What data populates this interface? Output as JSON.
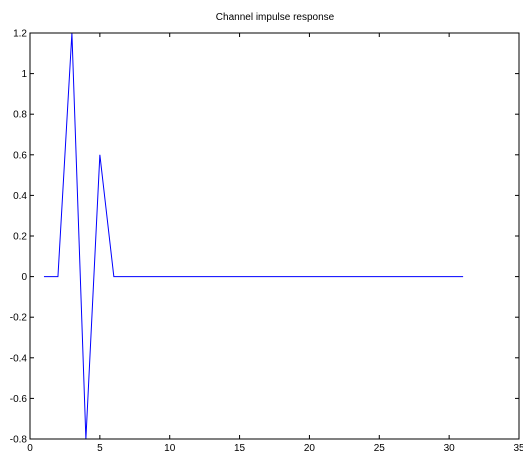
{
  "chart_data": {
    "type": "line",
    "title": "Channel impulse response",
    "xlabel": "",
    "ylabel": "",
    "xlim": [
      0,
      35
    ],
    "ylim": [
      -0.8,
      1.2
    ],
    "xticks": [
      0,
      5,
      10,
      15,
      20,
      25,
      30,
      35
    ],
    "yticks": [
      -0.8,
      -0.6,
      -0.4,
      -0.2,
      0,
      0.2,
      0.4,
      0.6,
      0.8,
      1,
      1.2
    ],
    "xtick_labels": [
      "0",
      "5",
      "10",
      "15",
      "20",
      "25",
      "30",
      "35"
    ],
    "ytick_labels": [
      "-0.8",
      "-0.6",
      "-0.4",
      "-0.2",
      "0",
      "0.2",
      "0.4",
      "0.6",
      "0.8",
      "1",
      "1.2"
    ],
    "grid": false,
    "series": [
      {
        "color": "#0000ff",
        "x": [
          1,
          2,
          3,
          4,
          5,
          6,
          7,
          8,
          9,
          10,
          11,
          12,
          13,
          14,
          15,
          16,
          17,
          18,
          19,
          20,
          21,
          22,
          23,
          24,
          25,
          26,
          27,
          28,
          29,
          30,
          31
        ],
        "y": [
          0,
          0,
          1.2,
          -0.8,
          0.6,
          0,
          0,
          0,
          0,
          0,
          0,
          0,
          0,
          0,
          0,
          0,
          0,
          0,
          0,
          0,
          0,
          0,
          0,
          0,
          0,
          0,
          0,
          0,
          0,
          0,
          0
        ]
      }
    ]
  }
}
